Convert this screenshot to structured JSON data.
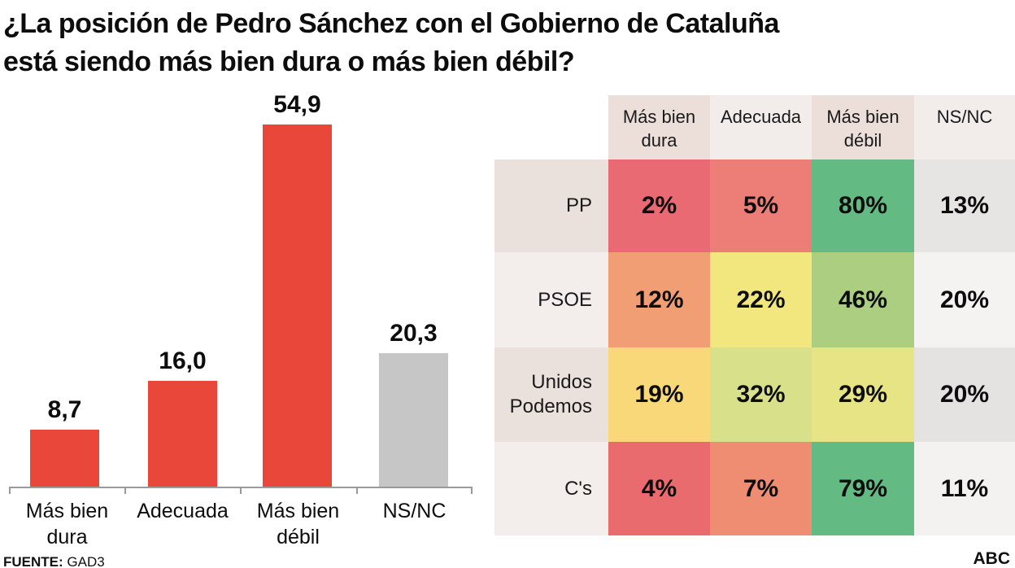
{
  "title": {
    "line1": "¿La posición de Pedro Sánchez con el Gobierno de Cataluña",
    "line2": "está siendo más bien dura o más bien débil?"
  },
  "footer": {
    "source_label": "FUENTE:",
    "source_value": "GAD3",
    "brand": "ABC"
  },
  "chart_data": [
    {
      "type": "bar",
      "categories": [
        "Más bien dura",
        "Adecuada",
        "Más bien débil",
        "NS/NC"
      ],
      "values": [
        8.7,
        16.0,
        54.9,
        20.3
      ],
      "value_labels": [
        "8,7",
        "16,0",
        "54,9",
        "20,3"
      ],
      "bar_colors": [
        "#e8473a",
        "#e8473a",
        "#e8473a",
        "#c6c6c6"
      ],
      "ylim": [
        0,
        60
      ],
      "grid": false,
      "legend": false,
      "axis_color": "#9a9a9a"
    },
    {
      "type": "heatmap",
      "columns": [
        "Más bien dura",
        "Adecuada",
        "Más bien débil",
        "NS/NC"
      ],
      "rows": [
        "PP",
        "PSOE",
        "Unidos Podemos",
        "C's"
      ],
      "values": [
        [
          2,
          5,
          80,
          13
        ],
        [
          12,
          22,
          46,
          20
        ],
        [
          19,
          32,
          29,
          20
        ],
        [
          4,
          7,
          79,
          11
        ]
      ],
      "cell_labels": [
        [
          "2%",
          "5%",
          "80%",
          "13%"
        ],
        [
          "12%",
          "22%",
          "46%",
          "20%"
        ],
        [
          "19%",
          "32%",
          "29%",
          "20%"
        ],
        [
          "4%",
          "7%",
          "79%",
          "11%"
        ]
      ],
      "cell_colors": [
        [
          "#ea6a73",
          "#ec7d77",
          "#63ba82",
          "#e7e5e4"
        ],
        [
          "#f29e74",
          "#f2e77e",
          "#abce80",
          "#f5f3f1"
        ],
        [
          "#f9d87a",
          "#d8e189",
          "#e6e485",
          "#e5e3e2"
        ],
        [
          "#e96b6e",
          "#ee8d72",
          "#63ba82",
          "#f4f2f0"
        ]
      ],
      "header_colors": [
        "#ecdfd9",
        "#f2eceb",
        "#ecdfd9",
        "#f2eceb"
      ],
      "row_label_colors": [
        "#eae0dc",
        "#f3eeeb",
        "#eae0dc",
        "#f3eeeb"
      ]
    }
  ]
}
